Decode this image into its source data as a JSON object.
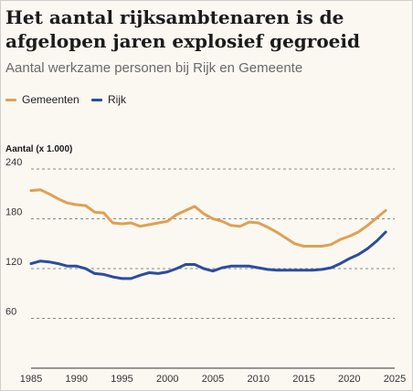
{
  "header": {
    "title": "Het aantal rijksambtenaren is de afgelopen jaren explosief gegroeid",
    "subtitle": "Aantal werkzame personen bij Rijk en Gemeente"
  },
  "chart_data": {
    "type": "line",
    "title": "Het aantal rijksambtenaren is de afgelopen jaren explosief gegroeid",
    "subtitle": "Aantal werkzame personen bij Rijk en Gemeente",
    "ylabel": "Aantal (x 1.000)",
    "xlabel": "",
    "xlim": [
      1985,
      2025
    ],
    "ylim": [
      0,
      240
    ],
    "x_ticks": [
      1985,
      1990,
      1995,
      2000,
      2005,
      2010,
      2015,
      2020,
      2025
    ],
    "y_ticks": [
      60,
      120,
      180,
      240
    ],
    "grid": "horizontal dashed",
    "legend": "top-left",
    "x": [
      1985,
      1986,
      1987,
      1988,
      1989,
      1990,
      1991,
      1992,
      1993,
      1994,
      1995,
      1996,
      1997,
      1998,
      1999,
      2000,
      2001,
      2002,
      2003,
      2004,
      2005,
      2006,
      2007,
      2008,
      2009,
      2010,
      2011,
      2012,
      2013,
      2014,
      2015,
      2016,
      2017,
      2018,
      2019,
      2020,
      2021,
      2022,
      2023,
      2024
    ],
    "series": [
      {
        "name": "Gemeenten",
        "color": "#e0a052",
        "values": [
          214,
          215,
          210,
          204,
          199,
          197,
          196,
          188,
          187,
          175,
          174,
          175,
          171,
          173,
          175,
          177,
          185,
          190,
          195,
          186,
          180,
          177,
          172,
          171,
          176,
          175,
          170,
          164,
          157,
          150,
          147,
          147,
          147,
          149,
          155,
          159,
          164,
          172,
          181,
          190
        ]
      },
      {
        "name": "Rijk",
        "color": "#2b4d9e",
        "values": [
          126,
          129,
          128,
          126,
          123,
          123,
          120,
          114,
          113,
          110,
          108,
          108,
          112,
          115,
          114,
          116,
          120,
          125,
          125,
          120,
          117,
          121,
          123,
          123,
          123,
          121,
          119,
          118,
          118,
          118,
          118,
          118,
          119,
          121,
          126,
          132,
          137,
          144,
          153,
          164
        ]
      }
    ]
  }
}
